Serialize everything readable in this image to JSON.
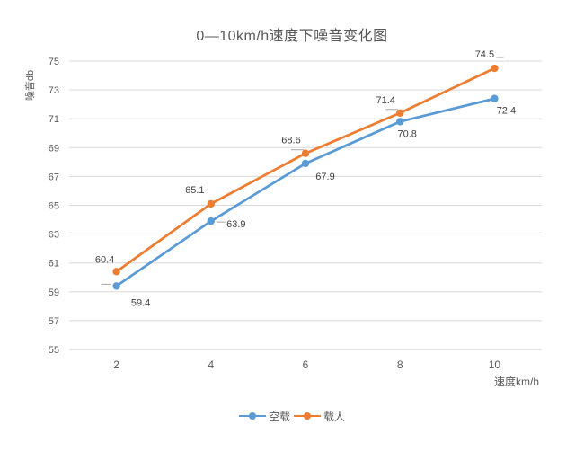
{
  "chart_data": {
    "type": "line",
    "title": "0—10km/h速度下噪音变化图",
    "xlabel": "速度km/h",
    "ylabel": "噪音db",
    "x_categories": [
      "2",
      "4",
      "6",
      "8",
      "10"
    ],
    "ylim": [
      55,
      75
    ],
    "ytick_step": 2,
    "yticks": [
      55,
      57,
      59,
      61,
      63,
      65,
      67,
      69,
      71,
      73,
      75
    ],
    "grid": true,
    "legend_position": "bottom",
    "series": [
      {
        "name": "空载",
        "color": "#5B9BD5",
        "values": [
          59.4,
          63.9,
          67.9,
          70.8,
          72.4
        ],
        "label_offsets": [
          [
            27,
            18
          ],
          [
            28,
            3
          ],
          [
            22,
            14
          ],
          [
            8,
            13
          ],
          [
            13,
            13
          ]
        ],
        "label_leaders": [
          [
            -17,
            -2,
            -6,
            -2
          ],
          [
            6,
            1,
            16,
            1
          ],
          null,
          null,
          null
        ]
      },
      {
        "name": "载人",
        "color": "#ED7D31",
        "values": [
          60.4,
          65.1,
          68.6,
          71.4,
          74.5
        ],
        "label_offsets": [
          [
            -13,
            -14
          ],
          [
            -18,
            -16
          ],
          [
            -16,
            -15
          ],
          [
            -16,
            -15
          ],
          [
            -11,
            -16
          ]
        ],
        "label_leaders": [
          null,
          null,
          [
            -16,
            -4,
            -2,
            -4
          ],
          [
            -16,
            -4,
            -2,
            -4
          ],
          [
            2,
            -12,
            10,
            -12
          ]
        ]
      }
    ],
    "colors": {
      "gridline": "#D9D9D9",
      "axis_line": "#C8C8C8",
      "tick_label": "#595959",
      "data_label": "#3F3F3F",
      "title": "#595959",
      "leader": "#A6A6A6"
    }
  }
}
